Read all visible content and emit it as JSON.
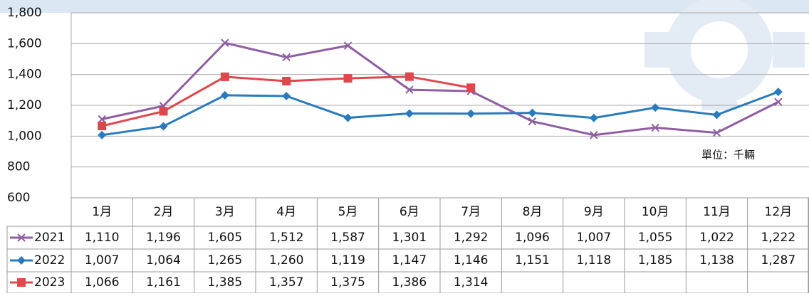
{
  "chart_data": {
    "type": "line",
    "categories": [
      "1月",
      "2月",
      "3月",
      "4月",
      "5月",
      "6月",
      "7月",
      "8月",
      "9月",
      "10月",
      "11月",
      "12月"
    ],
    "series": [
      {
        "name": "2021",
        "color": "#8e5ea2",
        "marker": "x",
        "values": [
          1110,
          1196,
          1605,
          1512,
          1587,
          1301,
          1292,
          1096,
          1007,
          1055,
          1022,
          1222
        ],
        "value_labels": [
          "1,110",
          "1,196",
          "1,605",
          "1,512",
          "1,587",
          "1,301",
          "1,292",
          "1,096",
          "1,007",
          "1,055",
          "1,022",
          "1,222"
        ]
      },
      {
        "name": "2022",
        "color": "#2a7bbd",
        "marker": "diamond",
        "values": [
          1007,
          1064,
          1265,
          1260,
          1119,
          1147,
          1146,
          1151,
          1118,
          1185,
          1138,
          1287
        ],
        "value_labels": [
          "1,007",
          "1,064",
          "1,265",
          "1,260",
          "1,119",
          "1,147",
          "1,146",
          "1,151",
          "1,118",
          "1,185",
          "1,138",
          "1,287"
        ]
      },
      {
        "name": "2023",
        "color": "#e0474c",
        "marker": "square",
        "values": [
          1066,
          1161,
          1385,
          1357,
          1375,
          1386,
          1314,
          null,
          null,
          null,
          null,
          null
        ],
        "value_labels": [
          "1,066",
          "1,161",
          "1,385",
          "1,357",
          "1,375",
          "1,386",
          "1,314",
          null,
          null,
          null,
          null,
          null
        ]
      }
    ],
    "ylim": [
      600,
      1800
    ],
    "yticks": [
      600,
      800,
      {
        "value": 1000,
        "label": "1,000"
      },
      {
        "value": 1200,
        "label": "1,200"
      },
      {
        "value": 1400,
        "label": "1,400"
      },
      {
        "value": 1600,
        "label": "1,600"
      },
      {
        "value": 1800,
        "label": "1,800"
      }
    ],
    "grid": true,
    "annotation": "單位：千輛"
  }
}
